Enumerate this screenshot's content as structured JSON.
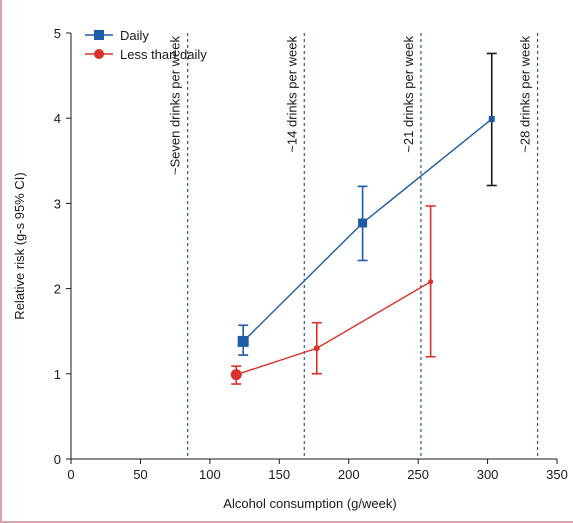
{
  "chart_data": {
    "type": "line",
    "xlabel": "Alcohol consumption (g/week)",
    "ylabel": "Relative risk (g-s 95% CI)",
    "xlim": [
      0,
      350
    ],
    "ylim": [
      0,
      5
    ],
    "x_ticks": [
      "0",
      "50",
      "100",
      "150",
      "200",
      "250",
      "300",
      "350"
    ],
    "y_ticks": [
      "0",
      "1",
      "2",
      "3",
      "4",
      "5"
    ],
    "legend_position": "top-left",
    "reference_lines": [
      {
        "x": 84,
        "label": "~Seven drinks per week"
      },
      {
        "x": 168,
        "label": "~14 drinks per week"
      },
      {
        "x": 252,
        "label": "~21 drinks per week"
      },
      {
        "x": 336,
        "label": "~28 drinks per week"
      }
    ],
    "series": [
      {
        "name": "Daily",
        "color": "#1f5ba6",
        "marker": "square",
        "x": [
          124,
          210,
          303
        ],
        "y": [
          1.38,
          2.77,
          3.99
        ],
        "lower": [
          1.22,
          2.33,
          3.21
        ],
        "upper": [
          1.57,
          3.2,
          4.76
        ]
      },
      {
        "name": "Less than daily",
        "color": "#d9322b",
        "marker": "circle",
        "x": [
          119,
          177,
          259
        ],
        "y": [
          0.99,
          1.3,
          2.08
        ],
        "lower": [
          0.88,
          1.0,
          1.2
        ],
        "upper": [
          1.09,
          1.6,
          2.97
        ]
      }
    ]
  }
}
